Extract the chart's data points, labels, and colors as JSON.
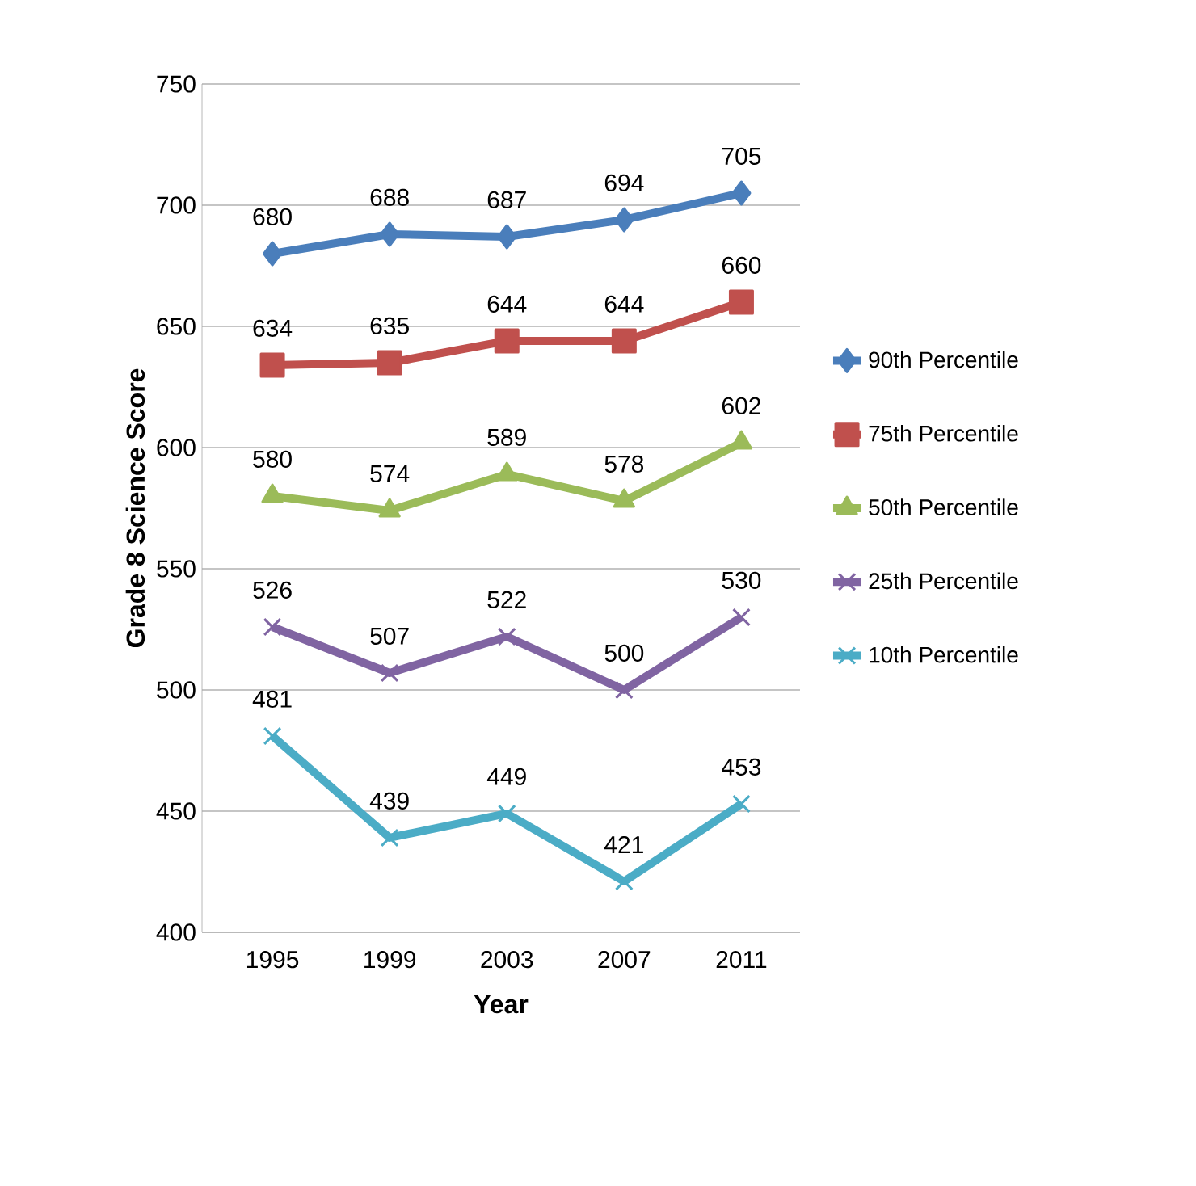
{
  "chart_data": {
    "type": "line",
    "xlabel": "Year",
    "ylabel": "Grade 8 Science Score",
    "categories": [
      "1995",
      "1999",
      "2003",
      "2007",
      "2011"
    ],
    "series": [
      {
        "name": "90th Percentile",
        "color": "#4a7ebb",
        "marker": "diamond",
        "values": [
          680,
          688,
          687,
          694,
          705
        ]
      },
      {
        "name": "75th Percentile",
        "color": "#c0504d",
        "marker": "square",
        "values": [
          634,
          635,
          644,
          644,
          660
        ]
      },
      {
        "name": "50th Percentile",
        "color": "#9bbb59",
        "marker": "triangle",
        "values": [
          580,
          574,
          589,
          578,
          602
        ]
      },
      {
        "name": "25th Percentile",
        "color": "#8064a2",
        "marker": "cross",
        "values": [
          526,
          507,
          522,
          500,
          530
        ]
      },
      {
        "name": "10th Percentile",
        "color": "#4bacc6",
        "marker": "cross",
        "values": [
          481,
          439,
          449,
          421,
          453
        ]
      }
    ],
    "ylim": [
      400,
      750
    ],
    "yticks": [
      400,
      450,
      500,
      550,
      600,
      650,
      700,
      750
    ],
    "grid": "y",
    "legend": "right",
    "data_labels": true
  }
}
